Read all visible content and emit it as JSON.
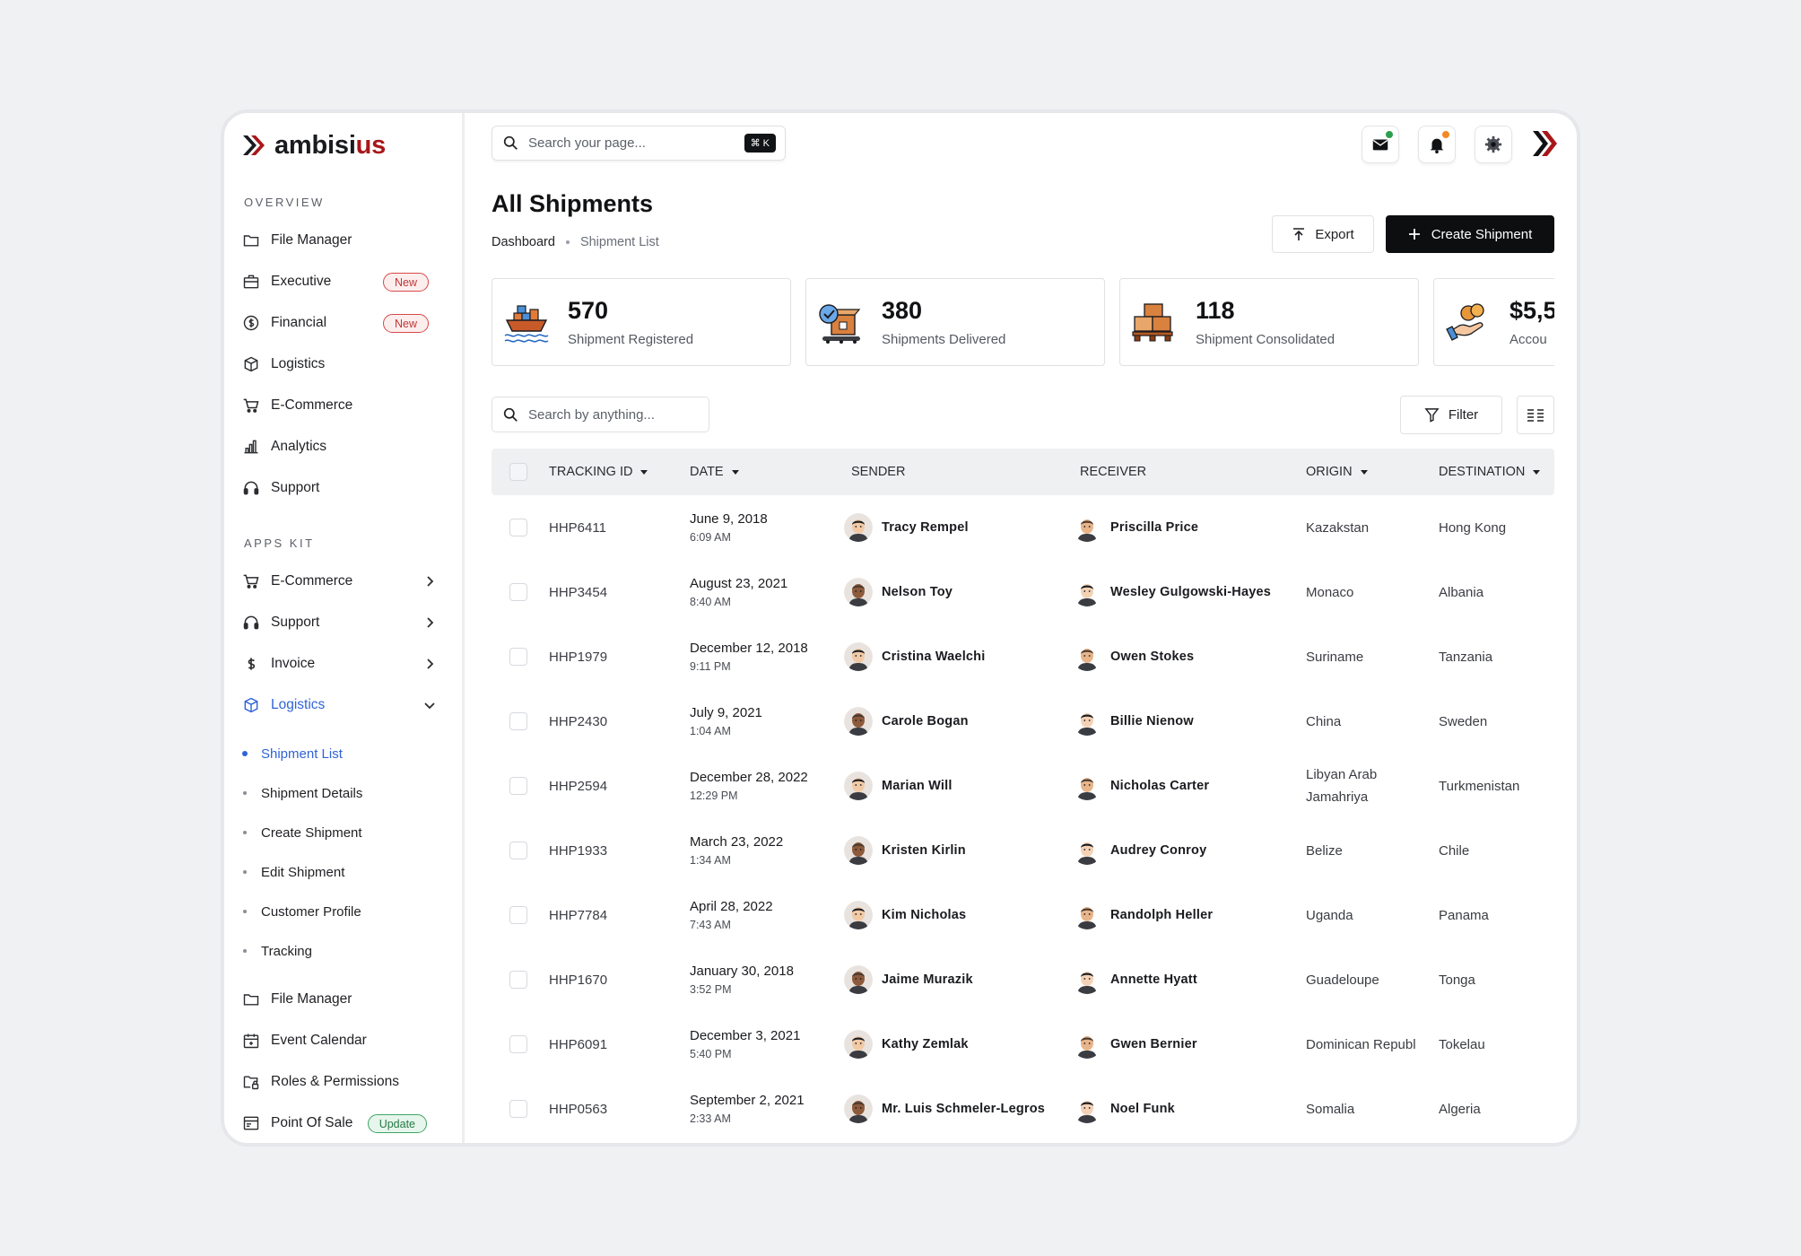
{
  "brand": {
    "name_main": "ambisi",
    "name_accent": "us",
    "accent_color": "#a8171a"
  },
  "sidebar": {
    "overview_label": "OVERVIEW",
    "overview_items": [
      {
        "label": "File Manager",
        "icon": "folder-icon"
      },
      {
        "label": "Executive",
        "icon": "briefcase-icon",
        "badge": "New"
      },
      {
        "label": "Financial",
        "icon": "dollar-circle-icon",
        "badge": "New"
      },
      {
        "label": "Logistics",
        "icon": "box-icon"
      },
      {
        "label": "E-Commerce",
        "icon": "cart-icon"
      },
      {
        "label": "Analytics",
        "icon": "bar-chart-icon"
      },
      {
        "label": "Support",
        "icon": "headset-icon"
      }
    ],
    "apps_label": "APPS KIT",
    "apps_items": [
      {
        "label": "E-Commerce",
        "icon": "cart-icon"
      },
      {
        "label": "Support",
        "icon": "headset-icon"
      },
      {
        "label": "Invoice",
        "icon": "dollar-icon"
      },
      {
        "label": "Logistics",
        "icon": "box-icon",
        "active": true
      }
    ],
    "logistics_sub": [
      {
        "label": "Shipment List",
        "active": true
      },
      {
        "label": "Shipment Details"
      },
      {
        "label": "Create Shipment"
      },
      {
        "label": "Edit Shipment"
      },
      {
        "label": "Customer Profile"
      },
      {
        "label": "Tracking"
      }
    ],
    "bottom_items": [
      {
        "label": "File Manager",
        "icon": "folder-icon"
      },
      {
        "label": "Event Calendar",
        "icon": "calendar-icon"
      },
      {
        "label": "Roles & Permissions",
        "icon": "folder-lock-icon"
      },
      {
        "label": "Point Of Sale",
        "icon": "pos-icon",
        "badge": "Update"
      }
    ]
  },
  "topbar": {
    "search_placeholder": "Search your page...",
    "shortcut": "⌘ K",
    "mail_dot_color": "#2e9e4f",
    "bell_dot_color": "#f08a24"
  },
  "header": {
    "title": "All Shipments",
    "breadcrumb": [
      "Dashboard",
      "Shipment List"
    ],
    "export_label": "Export",
    "create_label": "Create Shipment"
  },
  "stats": [
    {
      "value": "570",
      "label": "Shipment Registered",
      "icon": "cargo-ship-icon"
    },
    {
      "value": "380",
      "label": "Shipments Delivered",
      "icon": "delivered-box-icon"
    },
    {
      "value": "118",
      "label": "Shipment Consolidated",
      "icon": "pallet-boxes-icon"
    },
    {
      "value": "$5,5",
      "label": "Accou",
      "icon": "coins-hand-icon"
    }
  ],
  "table": {
    "search_placeholder": "Search by anything...",
    "filter_label": "Filter",
    "columns": [
      "TRACKING ID",
      "DATE",
      "SENDER",
      "RECEIVER",
      "ORIGIN",
      "DESTINATION"
    ],
    "rows": [
      {
        "id": "HHP6411",
        "date": "June 9, 2018",
        "time": "6:09 AM",
        "sender": "Tracy Rempel",
        "receiver": "Priscilla Price",
        "origin": "Kazakstan",
        "destination": "Hong Kong"
      },
      {
        "id": "HHP3454",
        "date": "August 23, 2021",
        "time": "8:40 AM",
        "sender": "Nelson Toy",
        "receiver": "Wesley Gulgowski-Hayes",
        "origin": "Monaco",
        "destination": "Albania"
      },
      {
        "id": "HHP1979",
        "date": "December 12, 2018",
        "time": "9:11 PM",
        "sender": "Cristina Waelchi",
        "receiver": "Owen Stokes",
        "origin": "Suriname",
        "destination": "Tanzania"
      },
      {
        "id": "HHP2430",
        "date": "July 9, 2021",
        "time": "1:04 AM",
        "sender": "Carole Bogan",
        "receiver": "Billie Nienow",
        "origin": "China",
        "destination": "Sweden"
      },
      {
        "id": "HHP2594",
        "date": "December 28, 2022",
        "time": "12:29 PM",
        "sender": "Marian Will",
        "receiver": "Nicholas Carter",
        "origin": "Libyan Arab Jamahriya",
        "destination": "Turkmenistan"
      },
      {
        "id": "HHP1933",
        "date": "March 23, 2022",
        "time": "1:34 AM",
        "sender": "Kristen Kirlin",
        "receiver": "Audrey Conroy",
        "origin": "Belize",
        "destination": "Chile"
      },
      {
        "id": "HHP7784",
        "date": "April 28, 2022",
        "time": "7:43 AM",
        "sender": "Kim Nicholas",
        "receiver": "Randolph Heller",
        "origin": "Uganda",
        "destination": "Panama"
      },
      {
        "id": "HHP1670",
        "date": "January 30, 2018",
        "time": "3:52 PM",
        "sender": "Jaime Murazik",
        "receiver": "Annette Hyatt",
        "origin": "Guadeloupe",
        "destination": "Tonga"
      },
      {
        "id": "HHP6091",
        "date": "December 3, 2021",
        "time": "5:40 PM",
        "sender": "Kathy Zemlak",
        "receiver": "Gwen Bernier",
        "origin": "Dominican Republ",
        "destination": "Tokelau"
      },
      {
        "id": "HHP0563",
        "date": "September 2, 2021",
        "time": "2:33 AM",
        "sender": "Mr. Luis Schmeler-Legros",
        "receiver": "Noel Funk",
        "origin": "Somalia",
        "destination": "Algeria"
      }
    ]
  }
}
